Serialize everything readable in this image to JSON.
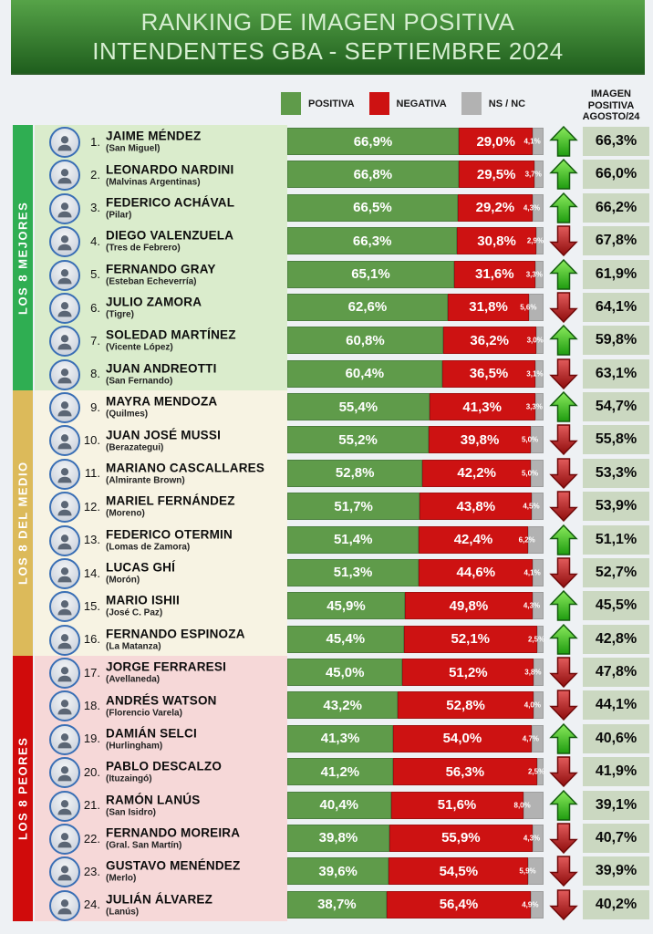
{
  "header": {
    "title_line1": "RANKING DE IMAGEN POSITIVA",
    "title_line2": "INTENDENTES GBA - SEPTIEMBRE 2024"
  },
  "legend": {
    "items": [
      {
        "label": "POSITIVA"
      },
      {
        "label": "NEGATIVA"
      },
      {
        "label": "NS / NC"
      }
    ]
  },
  "august_header": {
    "line1": "IMAGEN",
    "line2": "POSITIVA",
    "line3": "AGOSTO/24"
  },
  "sections": [
    {
      "label": "LOS 8 MEJORES",
      "band_color": "#2fae52",
      "row_bg": "#daeccc"
    },
    {
      "label": "LOS 8 DEL MEDIO",
      "band_color": "#dcba5a",
      "row_bg": "#f7f3e3"
    },
    {
      "label": "LOS 8 PEORES",
      "band_color": "#d00b0b",
      "row_bg": "#f6d8d8"
    }
  ],
  "colors": {
    "positive": "#5f9b4a",
    "negative": "#cd1212",
    "nsnc": "#b2b2b2",
    "august_bg": "#cbd8c1",
    "header_top": "#56a348",
    "header_bottom": "#1f5e1d",
    "arrow_up": "#2da814",
    "arrow_down": "#b01212"
  },
  "chart_data": {
    "type": "bar",
    "stacked": true,
    "orientation": "horizontal",
    "unit": "%",
    "title": "RANKING DE IMAGEN POSITIVA INTENDENTES GBA - SEPTIEMBRE 2024",
    "series_names": [
      "POSITIVA",
      "NEGATIVA",
      "NS / NC"
    ],
    "comparison_column": "IMAGEN POSITIVA AGOSTO/24",
    "xlim": [
      0,
      100
    ],
    "rows": [
      {
        "rank": 1,
        "name": "JAIME MÉNDEZ",
        "district": "San Miguel",
        "positiva": 66.9,
        "negativa": 29.0,
        "nsnc": 4.1,
        "trend": "up",
        "agosto": 66.3
      },
      {
        "rank": 2,
        "name": "LEONARDO NARDINI",
        "district": "Malvinas Argentinas",
        "positiva": 66.8,
        "negativa": 29.5,
        "nsnc": 3.7,
        "trend": "up",
        "agosto": 66.0
      },
      {
        "rank": 3,
        "name": "FEDERICO ACHÁVAL",
        "district": "Pilar",
        "positiva": 66.5,
        "negativa": 29.2,
        "nsnc": 4.3,
        "trend": "up",
        "agosto": 66.2
      },
      {
        "rank": 4,
        "name": "DIEGO VALENZUELA",
        "district": "Tres de Febrero",
        "positiva": 66.3,
        "negativa": 30.8,
        "nsnc": 2.9,
        "trend": "down",
        "agosto": 67.8
      },
      {
        "rank": 5,
        "name": "FERNANDO GRAY",
        "district": "Esteban Echeverría",
        "positiva": 65.1,
        "negativa": 31.6,
        "nsnc": 3.3,
        "trend": "up",
        "agosto": 61.9
      },
      {
        "rank": 6,
        "name": "JULIO ZAMORA",
        "district": "Tigre",
        "positiva": 62.6,
        "negativa": 31.8,
        "nsnc": 5.6,
        "trend": "down",
        "agosto": 64.1
      },
      {
        "rank": 7,
        "name": "SOLEDAD MARTÍNEZ",
        "district": "Vicente López",
        "positiva": 60.8,
        "negativa": 36.2,
        "nsnc": 3.0,
        "trend": "up",
        "agosto": 59.8
      },
      {
        "rank": 8,
        "name": "JUAN ANDREOTTI",
        "district": "San Fernando",
        "positiva": 60.4,
        "negativa": 36.5,
        "nsnc": 3.1,
        "trend": "down",
        "agosto": 63.1
      },
      {
        "rank": 9,
        "name": "MAYRA MENDOZA",
        "district": "Quilmes",
        "positiva": 55.4,
        "negativa": 41.3,
        "nsnc": 3.3,
        "trend": "up",
        "agosto": 54.7
      },
      {
        "rank": 10,
        "name": "JUAN JOSÉ MUSSI",
        "district": "Berazategui",
        "positiva": 55.2,
        "negativa": 39.8,
        "nsnc": 5.0,
        "trend": "down",
        "agosto": 55.8
      },
      {
        "rank": 11,
        "name": "MARIANO CASCALLARES",
        "district": "Almirante Brown",
        "positiva": 52.8,
        "negativa": 42.2,
        "nsnc": 5.0,
        "trend": "down",
        "agosto": 53.3
      },
      {
        "rank": 12,
        "name": "MARIEL FERNÁNDEZ",
        "district": "Moreno",
        "positiva": 51.7,
        "negativa": 43.8,
        "nsnc": 4.5,
        "trend": "down",
        "agosto": 53.9
      },
      {
        "rank": 13,
        "name": "FEDERICO OTERMIN",
        "district": "Lomas de Zamora",
        "positiva": 51.4,
        "negativa": 42.4,
        "nsnc": 6.2,
        "trend": "up",
        "agosto": 51.1
      },
      {
        "rank": 14,
        "name": "LUCAS GHÍ",
        "district": "Morón",
        "positiva": 51.3,
        "negativa": 44.6,
        "nsnc": 4.1,
        "trend": "down",
        "agosto": 52.7
      },
      {
        "rank": 15,
        "name": "MARIO ISHII",
        "district": "José C. Paz",
        "positiva": 45.9,
        "negativa": 49.8,
        "nsnc": 4.3,
        "trend": "up",
        "agosto": 45.5
      },
      {
        "rank": 16,
        "name": "FERNANDO ESPINOZA",
        "district": "La Matanza",
        "positiva": 45.4,
        "negativa": 52.1,
        "nsnc": 2.5,
        "trend": "up",
        "agosto": 42.8
      },
      {
        "rank": 17,
        "name": "JORGE FERRARESI",
        "district": "Avellaneda",
        "positiva": 45.0,
        "negativa": 51.2,
        "nsnc": 3.8,
        "trend": "down",
        "agosto": 47.8
      },
      {
        "rank": 18,
        "name": "ANDRÉS WATSON",
        "district": "Florencio Varela",
        "positiva": 43.2,
        "negativa": 52.8,
        "nsnc": 4.0,
        "trend": "down",
        "agosto": 44.1
      },
      {
        "rank": 19,
        "name": "DAMIÁN SELCI",
        "district": "Hurlingham",
        "positiva": 41.3,
        "negativa": 54.0,
        "nsnc": 4.7,
        "trend": "up",
        "agosto": 40.6
      },
      {
        "rank": 20,
        "name": "PABLO DESCALZO",
        "district": "Ituzaingó",
        "positiva": 41.2,
        "negativa": 56.3,
        "nsnc": 2.5,
        "trend": "down",
        "agosto": 41.9
      },
      {
        "rank": 21,
        "name": "RAMÓN LANÚS",
        "district": "San Isidro",
        "positiva": 40.4,
        "negativa": 51.6,
        "nsnc": 8.0,
        "trend": "up",
        "agosto": 39.1
      },
      {
        "rank": 22,
        "name": "FERNANDO MOREIRA",
        "district": "Gral. San Martín",
        "positiva": 39.8,
        "negativa": 55.9,
        "nsnc": 4.3,
        "trend": "down",
        "agosto": 40.7
      },
      {
        "rank": 23,
        "name": "GUSTAVO MENÉNDEZ",
        "district": "Merlo",
        "positiva": 39.6,
        "negativa": 54.5,
        "nsnc": 5.9,
        "trend": "down",
        "agosto": 39.9
      },
      {
        "rank": 24,
        "name": "JULIÁN ÁLVAREZ",
        "district": "Lanús",
        "positiva": 38.7,
        "negativa": 56.4,
        "nsnc": 4.9,
        "trend": "down",
        "agosto": 40.2
      }
    ]
  }
}
